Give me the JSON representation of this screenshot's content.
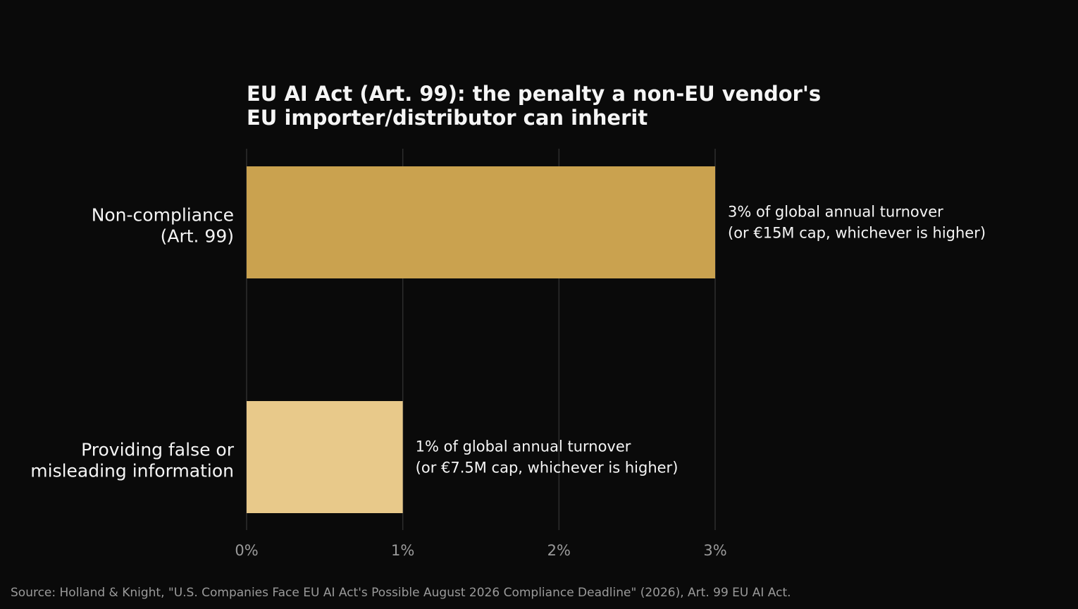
{
  "colors": {
    "background": "#0a0a0a",
    "title": "#f5f5f5",
    "grid": "#2e2e2e",
    "tick_label": "#9a9a9a",
    "category_label": "#f5f5f5",
    "data_label": "#f5f5f5",
    "source": "#9a9a9a"
  },
  "chart_data": {
    "type": "bar",
    "orientation": "horizontal",
    "title_lines": [
      "EU AI Act (Art. 99): the penalty a non-EU vendor's",
      "EU importer/distributor can inherit"
    ],
    "xlabel": "",
    "ylabel": "",
    "xlim": [
      0,
      3
    ],
    "x_ticks": [
      0,
      1,
      2,
      3
    ],
    "x_tick_labels": [
      "0%",
      "1%",
      "2%",
      "3%"
    ],
    "grid": "vertical",
    "legend": "none",
    "categories": [
      {
        "label_lines": [
          "Non-compliance",
          "(Art. 99)"
        ],
        "value": 3,
        "color": "#caa24f",
        "data_label_lines": [
          "3% of global annual turnover",
          "(or €15M cap, whichever is higher)"
        ]
      },
      {
        "label_lines": [
          "Providing false or",
          "misleading information"
        ],
        "value": 1,
        "color": "#e8c98a",
        "data_label_lines": [
          "1% of global annual turnover",
          "(or €7.5M cap, whichever is higher)"
        ]
      }
    ]
  },
  "source": "Source: Holland & Knight, \"U.S. Companies Face EU AI Act's Possible August 2026 Compliance Deadline\" (2026), Art. 99 EU AI Act."
}
